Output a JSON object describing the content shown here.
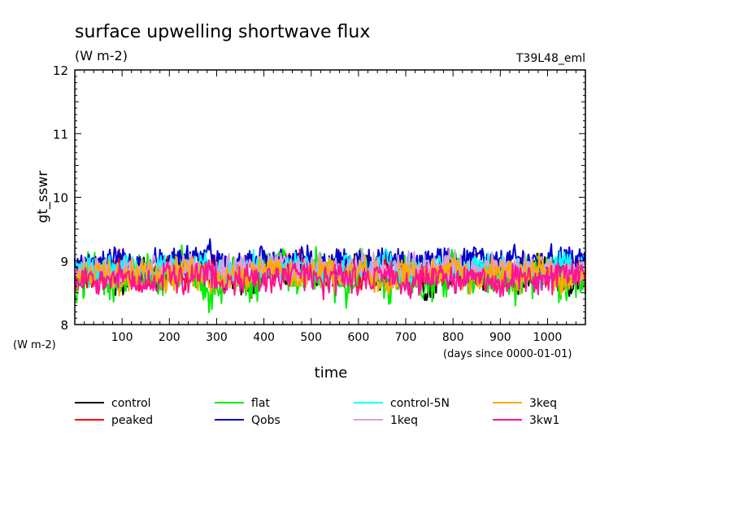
{
  "chart_data": {
    "type": "line",
    "title": "surface upwelling shortwave flux",
    "units": "(W m-2)",
    "experiment_label": "T39L48_eml",
    "ylabel": "gt_sswr",
    "y_units_label": "(W m-2)",
    "xlabel": "time",
    "x_units_label": "(days since 0000-01-01)",
    "xlim": [
      0,
      1080
    ],
    "ylim": [
      8,
      12
    ],
    "x_ticks": [
      100,
      200,
      300,
      400,
      500,
      600,
      700,
      800,
      900,
      1000
    ],
    "y_ticks": [
      8,
      9,
      10,
      11,
      12
    ],
    "grid": false,
    "legend_position": "bottom",
    "series": [
      {
        "name": "control",
        "color": "#000000",
        "mean": 8.74,
        "amplitude": 0.2,
        "values": [
          8.7,
          8.78,
          8.66,
          8.85,
          8.72,
          8.9,
          8.68,
          8.8,
          8.62,
          8.88,
          8.76,
          8.83,
          8.7,
          8.93,
          8.65,
          8.79,
          8.58,
          8.86,
          8.74,
          8.81,
          8.69,
          8.95,
          8.72,
          8.64
        ]
      },
      {
        "name": "peaked",
        "color": "#ff0000",
        "mean": 8.8,
        "amplitude": 0.2,
        "values": [
          8.82,
          8.74,
          8.91,
          8.7,
          8.86,
          8.77,
          8.93,
          8.72,
          8.85,
          8.8,
          8.96,
          8.73,
          8.88,
          8.75,
          8.98,
          8.71,
          8.84,
          8.78,
          8.9,
          8.76,
          8.87,
          8.74,
          8.92,
          8.81
        ]
      },
      {
        "name": "flat",
        "color": "#00ee00",
        "mean": 8.72,
        "amplitude": 0.3,
        "values": [
          8.6,
          8.85,
          8.55,
          8.9,
          8.68,
          8.95,
          8.5,
          8.8,
          8.62,
          9.05,
          8.7,
          8.88,
          8.58,
          8.92,
          8.66,
          8.84,
          8.55,
          8.9,
          8.72,
          8.8,
          8.6,
          8.94,
          8.65,
          8.78
        ]
      },
      {
        "name": "Qobs",
        "color": "#0000cc",
        "mean": 8.95,
        "amplitude": 0.2,
        "values": [
          9.0,
          8.92,
          9.1,
          8.88,
          9.05,
          8.95,
          9.12,
          8.9,
          9.02,
          8.97,
          9.08,
          8.91,
          9.04,
          8.94,
          9.1,
          8.89,
          9.01,
          8.96,
          9.07,
          8.93,
          9.03,
          8.95,
          9.09,
          8.98
        ]
      },
      {
        "name": "control-5N",
        "color": "#00ffff",
        "mean": 8.85,
        "amplitude": 0.2,
        "values": [
          8.88,
          8.8,
          8.95,
          8.78,
          8.9,
          8.83,
          8.97,
          8.8,
          8.92,
          8.86,
          8.94,
          8.79,
          8.91,
          8.84,
          8.98,
          8.77,
          8.89,
          8.85,
          8.93,
          8.82,
          8.9,
          8.8,
          8.96,
          8.87
        ]
      },
      {
        "name": "1keq",
        "color": "#dda0dd",
        "mean": 8.85,
        "amplitude": 0.2,
        "values": [
          8.84,
          8.9,
          8.8,
          8.95,
          8.82,
          8.92,
          8.78,
          8.9,
          8.85,
          8.96,
          8.8,
          8.91,
          8.83,
          8.94,
          8.79,
          8.9,
          8.86,
          8.97,
          8.81,
          8.92,
          8.84,
          8.95,
          8.8,
          8.88
        ]
      },
      {
        "name": "3keq",
        "color": "#ffaa00",
        "mean": 8.75,
        "amplitude": 0.2,
        "values": [
          8.74,
          8.82,
          8.68,
          8.86,
          8.72,
          8.9,
          8.66,
          8.8,
          8.75,
          8.94,
          8.7,
          8.85,
          8.73,
          8.88,
          8.64,
          8.83,
          8.76,
          8.9,
          8.69,
          8.84,
          8.72,
          8.87,
          8.67,
          8.8
        ]
      },
      {
        "name": "3kw1",
        "color": "#ff1493",
        "mean": 8.7,
        "amplitude": 0.2,
        "values": [
          8.72,
          8.66,
          8.8,
          8.63,
          8.76,
          8.68,
          8.82,
          8.64,
          8.74,
          8.7,
          8.85,
          8.62,
          8.77,
          8.67,
          8.83,
          8.6,
          8.75,
          8.69,
          8.8,
          8.65,
          8.78,
          8.66,
          8.81,
          8.71
        ]
      }
    ]
  }
}
